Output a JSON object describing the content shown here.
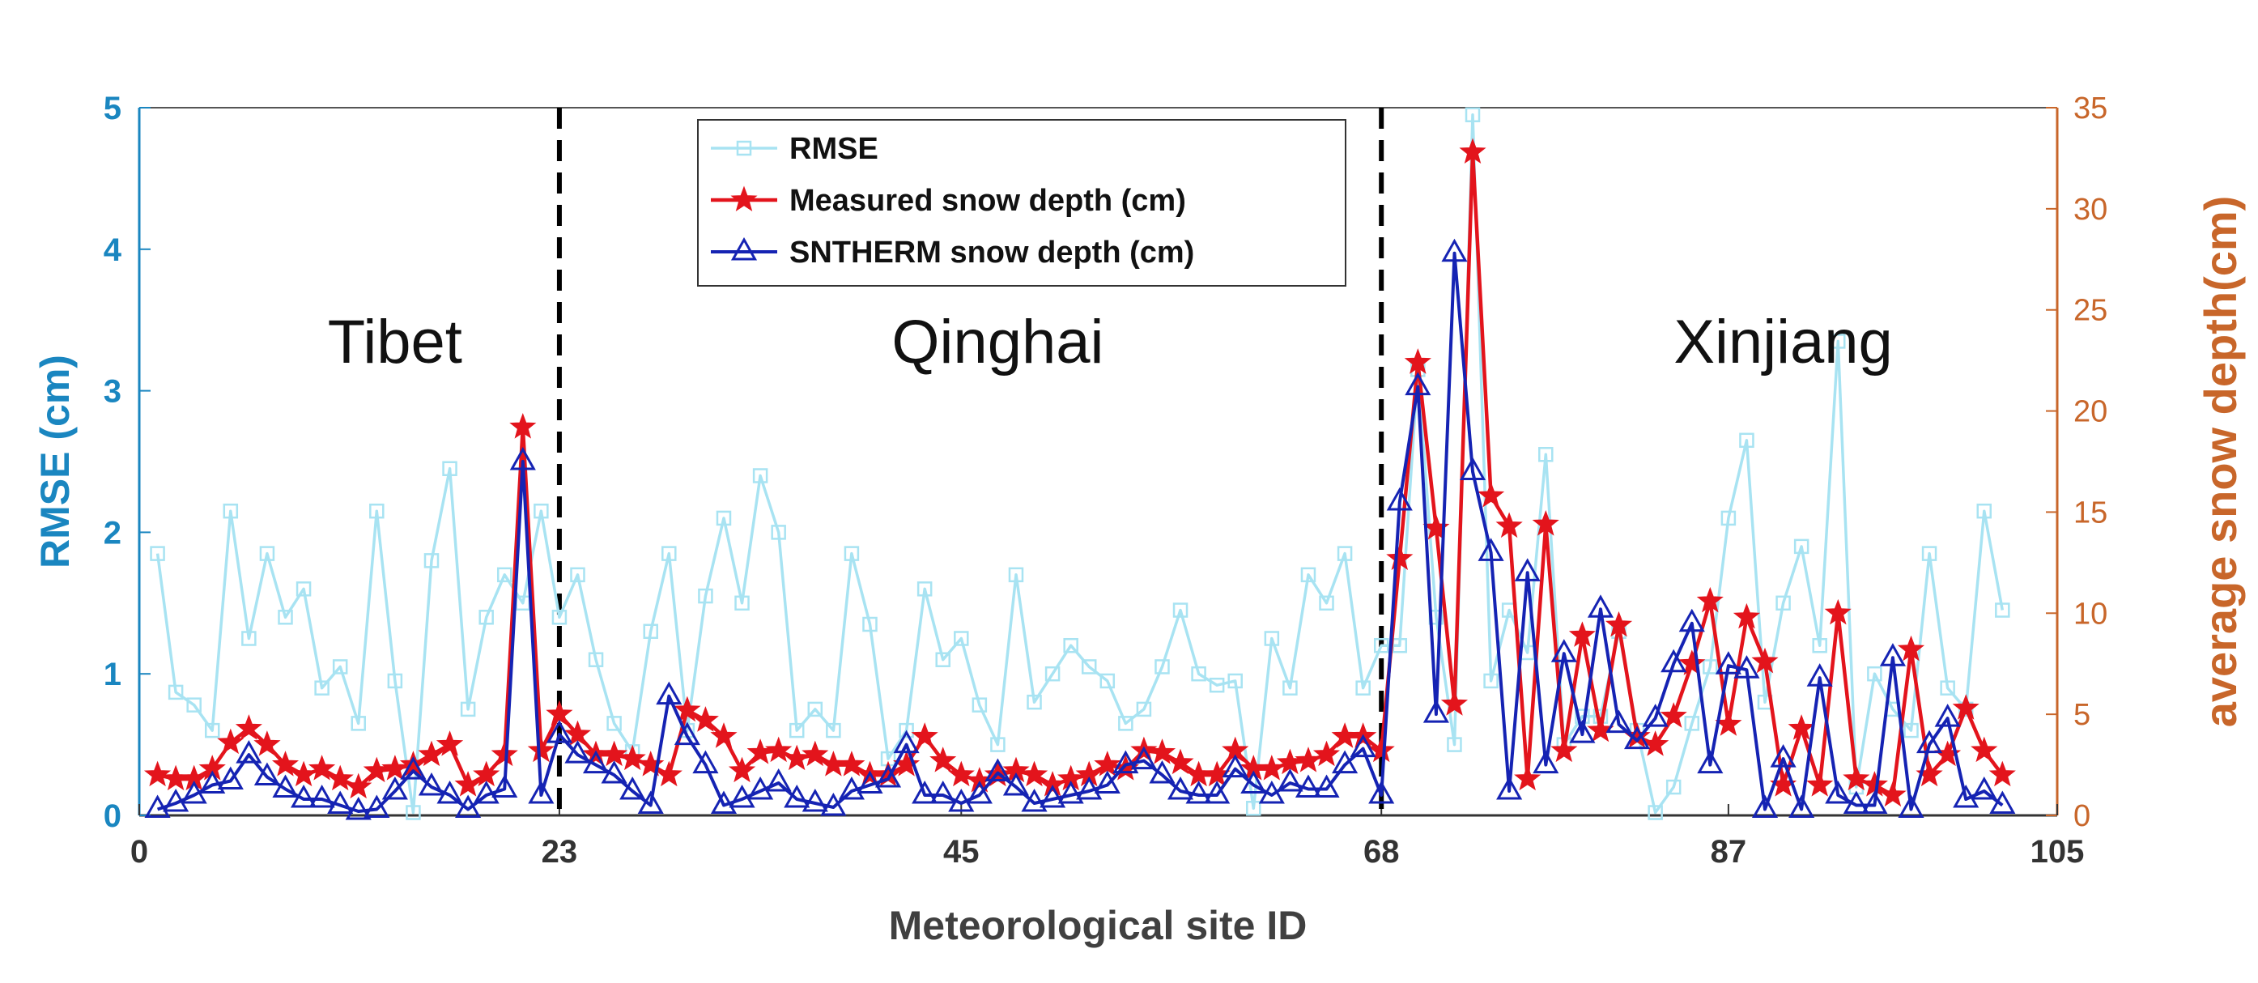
{
  "chart_data": {
    "type": "line",
    "xlabel": "Meteorological site ID",
    "ylabel_left": "RMSE (cm)",
    "ylabel_right": "average snow depth(cm)",
    "xlim": [
      0,
      105
    ],
    "ylim_left": [
      0,
      5
    ],
    "ylim_right": [
      0,
      35
    ],
    "x_ticks": [
      "0",
      "23",
      "45",
      "68",
      "87",
      "105"
    ],
    "y_ticks_left": [
      "0",
      "1",
      "2",
      "3",
      "4",
      "5"
    ],
    "y_ticks_right": [
      "0",
      "5",
      "10",
      "15",
      "20",
      "25",
      "30",
      "35"
    ],
    "dividers": [
      23,
      68
    ],
    "regions": [
      {
        "name": "Tibet",
        "x": 14
      },
      {
        "name": "Qinghai",
        "x": 47
      },
      {
        "name": "Xinjiang",
        "x": 90
      }
    ],
    "legend": [
      "RMSE",
      "Measured snow depth (cm)",
      "SNTHERM snow depth (cm)"
    ],
    "colors": {
      "rmse": "#a8e3f2",
      "measured": "#e3141c",
      "sntherm": "#1523b3",
      "left_axis": "#1a86c0",
      "right_axis": "#c8662a",
      "divider": "#000000"
    },
    "series": [
      {
        "name": "RMSE",
        "axis": "left",
        "marker": "square",
        "values": [
          1.85,
          0.87,
          0.78,
          0.6,
          2.15,
          1.25,
          1.85,
          1.4,
          1.6,
          0.9,
          1.05,
          0.65,
          2.15,
          0.95,
          0.02,
          1.8,
          2.45,
          0.75,
          1.4,
          1.7,
          1.5,
          2.15,
          1.4,
          1.7,
          1.1,
          0.65,
          0.45,
          1.3,
          1.85,
          0.6,
          1.55,
          2.1,
          1.5,
          2.4,
          2.0,
          0.6,
          0.75,
          0.6,
          1.85,
          1.35,
          0.4,
          0.6,
          1.6,
          1.1,
          1.25,
          0.78,
          0.5,
          1.7,
          0.8,
          1.0,
          1.2,
          1.05,
          0.95,
          0.65,
          0.75,
          1.05,
          1.45,
          1.0,
          0.92,
          0.95,
          0.05,
          1.25,
          0.9,
          1.7,
          1.5,
          1.85,
          0.9,
          1.2,
          1.2,
          3.15,
          1.4,
          0.5,
          4.95,
          0.95,
          1.45,
          1.15,
          2.55,
          0.5,
          0.7,
          0.7,
          1.3,
          0.6,
          0.02,
          0.2,
          0.65,
          1.05,
          2.1,
          2.65,
          0.8,
          1.5,
          1.9,
          1.2,
          3.35,
          0.2,
          1.0,
          0.75,
          0.6,
          1.85,
          0.9,
          0.75,
          2.15,
          1.45
        ]
      },
      {
        "name": "Measured snow depth (cm)",
        "axis": "right",
        "marker": "star",
        "values": [
          2.0,
          1.8,
          1.8,
          2.3,
          3.6,
          4.3,
          3.5,
          2.5,
          2.0,
          2.3,
          1.8,
          1.4,
          2.2,
          2.3,
          2.5,
          3.0,
          3.5,
          1.5,
          2.0,
          3.0,
          19.2,
          3.2,
          5.0,
          4.0,
          3.0,
          3.0,
          2.8,
          2.5,
          2.0,
          5.2,
          4.7,
          3.9,
          2.2,
          3.1,
          3.2,
          2.8,
          3.0,
          2.5,
          2.5,
          2.0,
          2.0,
          2.5,
          3.9,
          2.7,
          2.0,
          1.7,
          2.0,
          2.2,
          2.0,
          1.5,
          1.8,
          2.0,
          2.5,
          2.3,
          3.2,
          3.1,
          2.6,
          2.0,
          2.0,
          3.2,
          2.3,
          2.3,
          2.6,
          2.7,
          3.0,
          3.9,
          3.9,
          3.2,
          12.7,
          22.4,
          14.2,
          5.5,
          32.8,
          15.8,
          14.3,
          1.8,
          14.4,
          3.2,
          8.9,
          4.2,
          9.4,
          3.9,
          3.5,
          4.9,
          7.5,
          10.6,
          4.5,
          9.8,
          7.6,
          1.5,
          4.3,
          1.5,
          10.0,
          1.8,
          1.5,
          1.0,
          8.2,
          2.0,
          3.0,
          5.3,
          3.2,
          2.0
        ]
      },
      {
        "name": "SNTHERM snow depth (cm)",
        "axis": "right",
        "marker": "triangle",
        "values": [
          0.3,
          0.6,
          1.0,
          1.5,
          1.7,
          3.0,
          1.9,
          1.3,
          0.8,
          0.8,
          0.5,
          0.2,
          0.3,
          1.2,
          2.2,
          1.4,
          1.0,
          0.3,
          1.0,
          1.3,
          17.5,
          1.0,
          4.0,
          3.0,
          2.5,
          2.0,
          1.2,
          0.5,
          5.9,
          3.9,
          2.5,
          0.5,
          0.8,
          1.2,
          1.6,
          0.8,
          0.6,
          0.4,
          1.2,
          1.5,
          1.8,
          3.5,
          1.0,
          1.0,
          0.6,
          1.0,
          2.1,
          1.4,
          0.6,
          0.8,
          1.0,
          1.2,
          1.5,
          2.5,
          2.7,
          2.0,
          1.2,
          1.0,
          1.0,
          2.3,
          1.5,
          1.0,
          1.6,
          1.3,
          1.3,
          2.5,
          3.3,
          1.0,
          15.5,
          21.2,
          5.0,
          27.8,
          17.0,
          13.0,
          1.2,
          12.0,
          2.5,
          8.0,
          4.0,
          10.2,
          4.5,
          3.7,
          4.8,
          7.5,
          9.5,
          2.5,
          7.4,
          7.2,
          0.3,
          2.8,
          0.3,
          6.8,
          1.0,
          0.5,
          0.5,
          7.8,
          0.3,
          3.5,
          4.8,
          0.8,
          1.2,
          0.5
        ]
      }
    ]
  }
}
